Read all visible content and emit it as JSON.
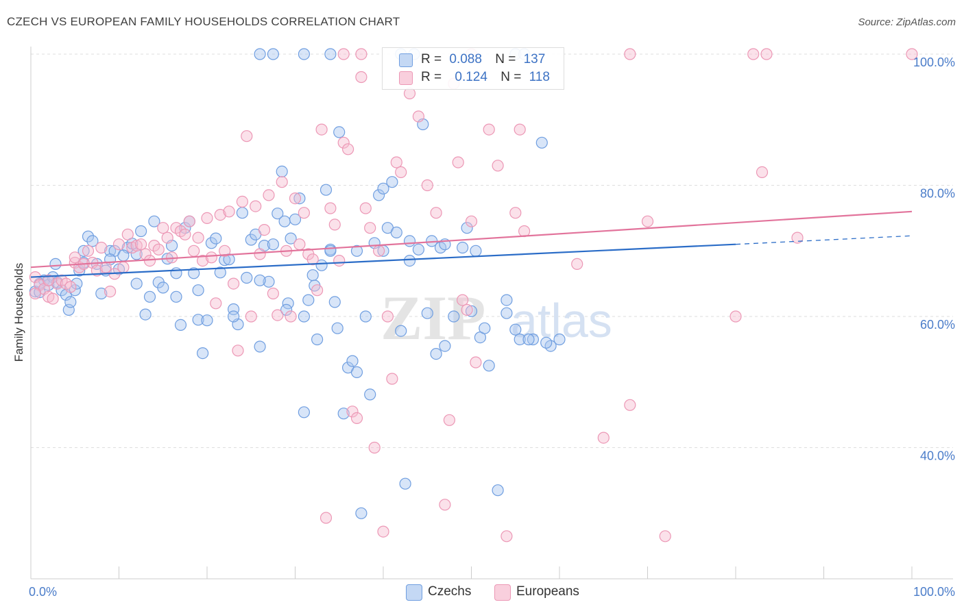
{
  "header": {
    "title": "CZECH VS EUROPEAN FAMILY HOUSEHOLDS CORRELATION CHART",
    "source": "Source: ZipAtlas.com"
  },
  "watermark": {
    "zip": "ZIP",
    "atlas": "atlas"
  },
  "stats": {
    "czechs": {
      "r_label": "R =",
      "r_value": "0.088",
      "n_label": "N =",
      "n_value": "137"
    },
    "europeans": {
      "r_label": "R =",
      "r_value": "0.124",
      "n_label": "N =",
      "n_value": "118"
    }
  },
  "legend": {
    "czechs": "Czechs",
    "europeans": "Europeans"
  },
  "colors": {
    "czechs_fill": "#a9c6f0",
    "czechs_stroke": "#6f9ee0",
    "czechs_line": "#2a6cc7",
    "europeans_fill": "#f6bcd0",
    "europeans_stroke": "#ec97b5",
    "europeans_line": "#e2739b",
    "tick_text": "#4a7cc9",
    "grid": "#dddddd"
  },
  "chart_data": {
    "type": "scatter",
    "title": "CZECH VS EUROPEAN FAMILY HOUSEHOLDS CORRELATION CHART",
    "xlabel": "",
    "ylabel": "Family Households",
    "xlim": [
      0,
      100
    ],
    "ylim": [
      20,
      101
    ],
    "x_tick_labels": [
      "0.0%",
      "100.0%"
    ],
    "y_ticks": [
      40,
      60,
      80,
      100
    ],
    "y_tick_labels": [
      "40.0%",
      "60.0%",
      "80.0%",
      "100.0%"
    ],
    "grid": true,
    "legend_position": "bottom-center",
    "series": [
      {
        "name": "Czechs",
        "r": 0.088,
        "n": 137,
        "trend": {
          "x0": 0,
          "y0": 66.0,
          "x1": 80,
          "y1": 71.0,
          "dashed_to_x": 100,
          "dashed_to_y": 72.3
        },
        "points": [
          [
            0.5,
            63.8
          ],
          [
            1,
            63.7
          ],
          [
            1.5,
            65.5
          ],
          [
            2,
            64.8
          ],
          [
            2.5,
            66
          ],
          [
            2.8,
            68
          ],
          [
            3,
            65.2
          ],
          [
            3.5,
            64
          ],
          [
            4,
            63.3
          ],
          [
            4.3,
            61
          ],
          [
            4.5,
            62.2
          ],
          [
            5,
            64
          ],
          [
            5.2,
            65
          ],
          [
            5.5,
            67
          ],
          [
            6,
            68.2
          ],
          [
            6.5,
            72.2
          ],
          [
            7,
            71.5
          ],
          [
            7.5,
            68
          ],
          [
            8,
            63.5
          ],
          [
            8.5,
            67
          ],
          [
            9,
            70
          ],
          [
            9.5,
            70
          ],
          [
            10,
            67.2
          ],
          [
            11,
            70.5
          ],
          [
            11.5,
            71.1
          ],
          [
            12,
            65
          ],
          [
            12.5,
            73
          ],
          [
            13,
            60.3
          ],
          [
            13.5,
            63
          ],
          [
            14,
            74.5
          ],
          [
            14.5,
            65.2
          ],
          [
            15,
            64.4
          ],
          [
            15.5,
            68.8
          ],
          [
            16,
            70.8
          ],
          [
            16.5,
            66.6
          ],
          [
            17,
            58.7
          ],
          [
            17.5,
            73.5
          ],
          [
            18,
            74.5
          ],
          [
            18.5,
            66.6
          ],
          [
            19,
            59.5
          ],
          [
            19.5,
            54.4
          ],
          [
            20,
            59.4
          ],
          [
            20.5,
            71.2
          ],
          [
            21,
            71.9
          ],
          [
            21.5,
            66.7
          ],
          [
            22,
            68.6
          ],
          [
            22.5,
            68.7
          ],
          [
            23,
            61.1
          ],
          [
            23.5,
            58.8
          ],
          [
            24,
            75.8
          ],
          [
            24.5,
            65.9
          ],
          [
            25,
            71.7
          ],
          [
            25.5,
            72.5
          ],
          [
            26,
            55.4
          ],
          [
            26.5,
            70.8
          ],
          [
            27,
            65.3
          ],
          [
            27.5,
            71
          ],
          [
            28,
            75.7
          ],
          [
            28.5,
            82.1
          ],
          [
            28.8,
            74.5
          ],
          [
            29.2,
            62
          ],
          [
            29.5,
            71.9
          ],
          [
            30,
            74.8
          ],
          [
            30.5,
            78
          ],
          [
            31,
            45.4
          ],
          [
            31.5,
            62.5
          ],
          [
            32,
            66.3
          ],
          [
            32.2,
            64.7
          ],
          [
            32.5,
            56.5
          ],
          [
            33,
            67.8
          ],
          [
            33.5,
            79.3
          ],
          [
            34,
            70.2
          ],
          [
            34.5,
            62.2
          ],
          [
            34.8,
            58.2
          ],
          [
            35,
            88.1
          ],
          [
            35.5,
            45.2
          ],
          [
            36,
            52.2
          ],
          [
            36.5,
            53.2
          ],
          [
            37,
            51.5
          ],
          [
            37.5,
            30
          ],
          [
            38,
            60
          ],
          [
            38.5,
            48.1
          ],
          [
            39,
            71.2
          ],
          [
            39.5,
            78.5
          ],
          [
            40,
            79.5
          ],
          [
            40.5,
            73.5
          ],
          [
            41,
            80.5
          ],
          [
            41.5,
            72.8
          ],
          [
            42,
            57.8
          ],
          [
            42.5,
            34.5
          ],
          [
            43,
            71.5
          ],
          [
            44,
            70.2
          ],
          [
            44.5,
            89.3
          ],
          [
            45,
            60.5
          ],
          [
            45.5,
            71.5
          ],
          [
            46,
            54.3
          ],
          [
            46.5,
            70.5
          ],
          [
            47,
            55.5
          ],
          [
            48,
            60
          ],
          [
            49,
            70.5
          ],
          [
            49.5,
            73.5
          ],
          [
            50,
            60.8
          ],
          [
            51,
            56.8
          ],
          [
            51.5,
            58.2
          ],
          [
            52,
            52.5
          ],
          [
            53,
            33.5
          ],
          [
            54,
            62.5
          ],
          [
            55,
            58
          ],
          [
            55.5,
            56.5
          ],
          [
            57,
            56.5
          ],
          [
            58,
            86.5
          ],
          [
            59,
            55.5
          ],
          [
            60,
            56.5
          ],
          [
            26,
            100
          ],
          [
            27.5,
            100
          ],
          [
            31,
            100
          ],
          [
            34,
            100
          ],
          [
            42,
            100
          ],
          [
            43.5,
            100
          ],
          [
            55,
            100
          ],
          [
            56,
            100
          ],
          [
            1,
            65
          ],
          [
            2,
            65.5
          ],
          [
            6,
            70
          ],
          [
            9,
            68.7
          ],
          [
            10.5,
            69.3
          ],
          [
            12,
            69.5
          ],
          [
            16.5,
            63
          ],
          [
            19,
            64
          ],
          [
            23,
            60
          ],
          [
            26,
            65.5
          ],
          [
            29,
            61
          ],
          [
            31,
            60
          ],
          [
            34,
            70
          ],
          [
            37,
            70
          ],
          [
            40,
            70
          ],
          [
            43,
            68.5
          ],
          [
            47,
            71
          ],
          [
            50.5,
            70
          ],
          [
            54,
            60.5
          ],
          [
            56.5,
            56.5
          ],
          [
            58.5,
            56
          ]
        ]
      },
      {
        "name": "Europeans",
        "r": 0.124,
        "n": 118,
        "trend": {
          "x0": 0,
          "y0": 67.5,
          "x1": 100,
          "y1": 76.0
        },
        "points": [
          [
            0.5,
            66
          ],
          [
            1,
            64.8
          ],
          [
            1.5,
            64.2
          ],
          [
            2,
            63
          ],
          [
            2.5,
            62.7
          ],
          [
            3,
            65
          ],
          [
            3.5,
            65.5
          ],
          [
            4,
            65
          ],
          [
            4.5,
            64.5
          ],
          [
            5,
            68.2
          ],
          [
            5.5,
            67.5
          ],
          [
            6,
            68
          ],
          [
            6.5,
            70
          ],
          [
            7,
            68.2
          ],
          [
            7.5,
            67
          ],
          [
            8,
            70.5
          ],
          [
            8.5,
            67.5
          ],
          [
            9,
            63.8
          ],
          [
            9.5,
            66.5
          ],
          [
            10,
            71
          ],
          [
            10.5,
            67.5
          ],
          [
            11,
            72.5
          ],
          [
            11.5,
            70.5
          ],
          [
            12,
            70.8
          ],
          [
            12.5,
            71
          ],
          [
            13,
            69.5
          ],
          [
            13.5,
            68.5
          ],
          [
            14,
            70.8
          ],
          [
            14.5,
            70.2
          ],
          [
            15,
            73.5
          ],
          [
            15.5,
            72
          ],
          [
            16,
            69
          ],
          [
            16.5,
            73.5
          ],
          [
            17,
            73
          ],
          [
            17.5,
            72.5
          ],
          [
            18,
            74.5
          ],
          [
            18.5,
            70
          ],
          [
            19,
            72
          ],
          [
            19.5,
            68.5
          ],
          [
            20,
            75
          ],
          [
            20.5,
            69
          ],
          [
            21,
            62
          ],
          [
            21.5,
            75.5
          ],
          [
            22,
            70
          ],
          [
            22.5,
            76
          ],
          [
            23,
            65
          ],
          [
            23.5,
            54.8
          ],
          [
            24,
            77.5
          ],
          [
            24.5,
            87.5
          ],
          [
            25,
            60
          ],
          [
            25.5,
            76.8
          ],
          [
            26,
            69.5
          ],
          [
            26.5,
            73.2
          ],
          [
            27,
            78.5
          ],
          [
            27.5,
            63.5
          ],
          [
            28,
            60.2
          ],
          [
            28.5,
            80.5
          ],
          [
            29,
            70
          ],
          [
            29.5,
            60
          ],
          [
            30,
            78
          ],
          [
            30.5,
            71
          ],
          [
            31,
            75.8
          ],
          [
            31.5,
            69.5
          ],
          [
            32,
            68.7
          ],
          [
            32.5,
            64
          ],
          [
            33,
            88.5
          ],
          [
            33.5,
            29.3
          ],
          [
            34,
            76.5
          ],
          [
            34.5,
            74
          ],
          [
            35,
            68.5
          ],
          [
            35.5,
            86.5
          ],
          [
            36,
            85.5
          ],
          [
            36.5,
            45.5
          ],
          [
            37,
            44.5
          ],
          [
            37.5,
            96.5
          ],
          [
            38,
            76.5
          ],
          [
            38.5,
            73.5
          ],
          [
            39,
            40
          ],
          [
            39.5,
            70
          ],
          [
            40,
            27.2
          ],
          [
            40.5,
            60
          ],
          [
            41,
            50.5
          ],
          [
            41.5,
            83.5
          ],
          [
            42,
            82
          ],
          [
            43,
            94
          ],
          [
            44,
            90.5
          ],
          [
            45,
            80
          ],
          [
            46,
            75.8
          ],
          [
            47,
            31.3
          ],
          [
            47.5,
            44.2
          ],
          [
            48,
            95.5
          ],
          [
            48.5,
            83.5
          ],
          [
            49,
            62.5
          ],
          [
            49.5,
            61
          ],
          [
            50,
            74.5
          ],
          [
            50.5,
            53
          ],
          [
            52,
            88.5
          ],
          [
            53,
            83
          ],
          [
            54,
            26.5
          ],
          [
            55,
            75.8
          ],
          [
            55.5,
            88.5
          ],
          [
            56,
            73
          ],
          [
            62,
            68
          ],
          [
            65,
            41.5
          ],
          [
            68,
            46.5
          ],
          [
            70,
            74.5
          ],
          [
            72,
            26.5
          ],
          [
            80,
            60
          ],
          [
            83,
            82
          ],
          [
            87,
            72
          ],
          [
            35.5,
            100
          ],
          [
            37.5,
            100
          ],
          [
            50,
            100
          ],
          [
            68,
            100
          ],
          [
            82,
            100
          ],
          [
            83.5,
            100
          ],
          [
            100,
            100
          ],
          [
            0.5,
            63.5
          ],
          [
            2,
            65.5
          ],
          [
            5,
            69
          ]
        ]
      }
    ]
  }
}
